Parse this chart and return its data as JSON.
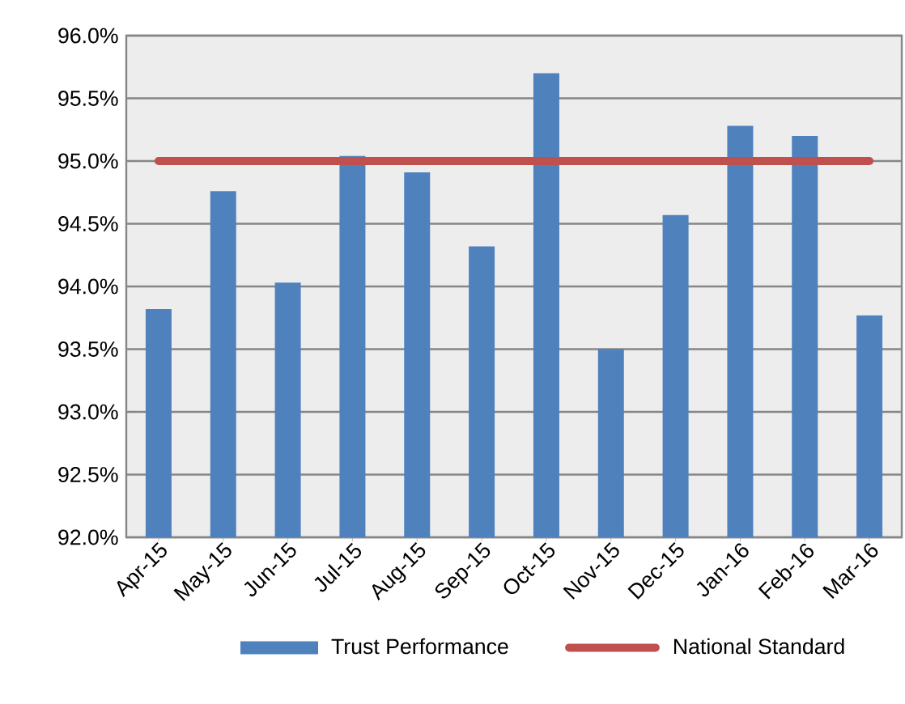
{
  "chart_data": {
    "type": "bar",
    "categories": [
      "Apr-15",
      "May-15",
      "Jun-15",
      "Jul-15",
      "Aug-15",
      "Sep-15",
      "Oct-15",
      "Nov-15",
      "Dec-15",
      "Jan-16",
      "Feb-16",
      "Mar-16"
    ],
    "series": [
      {
        "name": "Trust Performance",
        "color": "#4f81bd",
        "values": [
          93.82,
          94.76,
          94.03,
          95.04,
          94.91,
          94.32,
          95.7,
          93.5,
          94.57,
          95.28,
          95.2,
          93.77
        ]
      },
      {
        "name": "National Standard",
        "type": "line",
        "color": "#c0504d",
        "values": [
          95,
          95,
          95,
          95,
          95,
          95,
          95,
          95,
          95,
          95,
          95,
          95
        ]
      }
    ],
    "ylim": [
      92,
      96
    ],
    "yticks": [
      {
        "value": 92,
        "label": "92.0%"
      },
      {
        "value": 92.5,
        "label": "92.5%"
      },
      {
        "value": 93,
        "label": "93.0%"
      },
      {
        "value": 93.5,
        "label": "93.5%"
      },
      {
        "value": 94,
        "label": "94.0%"
      },
      {
        "value": 94.5,
        "label": "94.5%"
      },
      {
        "value": 95,
        "label": "95.0%"
      },
      {
        "value": 95.5,
        "label": "95.5%"
      },
      {
        "value": 96,
        "label": "96.0%"
      }
    ],
    "grid": "y",
    "legend": "bottom"
  }
}
